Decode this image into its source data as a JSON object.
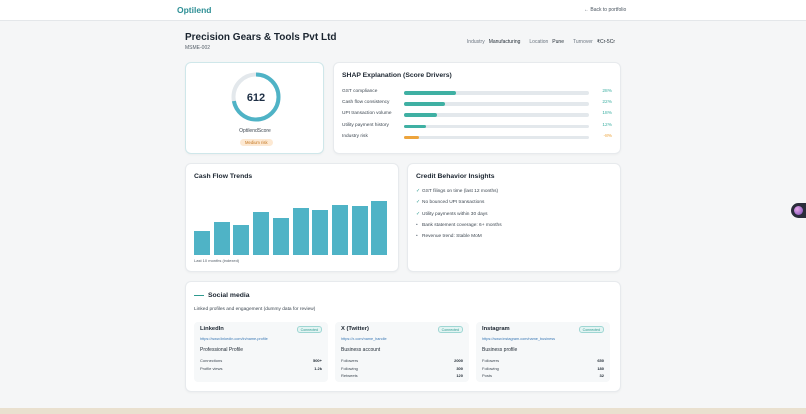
{
  "header": {
    "brand": "Optilend",
    "back_link": "← Back to portfolio"
  },
  "company": {
    "name": "Precision Gears & Tools Pvt Ltd",
    "id": "MSME-002",
    "meta": [
      {
        "label": "Industry",
        "value": "Manufacturing"
      },
      {
        "label": "Location",
        "value": "Pune"
      },
      {
        "label": "Turnover",
        "value": "₹Cr-5Cr"
      }
    ]
  },
  "score": {
    "value": "612",
    "fraction": 0.72,
    "label": "OptilendScore",
    "risk": "Medium risk",
    "ring_color": "#4fb3c6",
    "inner_color": "#1e2f45"
  },
  "shap": {
    "title": "SHAP Explanation (Score Drivers)",
    "rows": [
      {
        "name": "GST compliance",
        "value": "28%",
        "fraction": 0.28,
        "color": "#3fb0a3"
      },
      {
        "name": "Cash flow consistency",
        "value": "22%",
        "fraction": 0.22,
        "color": "#3fb0a3"
      },
      {
        "name": "UPI transaction volume",
        "value": "18%",
        "fraction": 0.18,
        "color": "#3fb0a3"
      },
      {
        "name": "Utility payment history",
        "value": "12%",
        "fraction": 0.12,
        "color": "#3fb0a3"
      },
      {
        "name": "Industry risk",
        "value": "-8%",
        "fraction": 0.08,
        "color": "#eda43c"
      }
    ]
  },
  "cashflow": {
    "title": "Cash Flow Trends",
    "caption": "Last 10 months (indexed)"
  },
  "chart_data": {
    "type": "bar",
    "title": "Cash Flow Trends",
    "values": [
      38,
      52,
      48,
      68,
      58,
      74,
      72,
      80,
      78,
      85
    ],
    "ylim": [
      0,
      100
    ],
    "color": "#4fb3c6"
  },
  "insights": {
    "title": "Credit Behavior Insights",
    "items": [
      {
        "mark": "✓",
        "text": "GST filings on time (last 12 months)"
      },
      {
        "mark": "✓",
        "text": "No bounced UPI transactions"
      },
      {
        "mark": "✓",
        "text": "Utility payments within 30 days"
      },
      {
        "mark": "•",
        "text": "Bank statement coverage: 6+ months"
      },
      {
        "mark": "•",
        "text": "Revenue trend: Stable MoM"
      }
    ]
  },
  "social": {
    "title": "Social media",
    "subtitle": "Linked profiles and engagement (dummy data for review)",
    "profiles": [
      {
        "name": "LinkedIn",
        "status": "Connected",
        "url": "https://www.linkedin.com/in/name-profile",
        "type": "Professional Profile",
        "stats": [
          {
            "label": "Connections",
            "value": "500+"
          },
          {
            "label": "Profile views",
            "value": "1.2k"
          }
        ]
      },
      {
        "name": "X (Twitter)",
        "status": "Connected",
        "url": "https://x.com/name_handle",
        "type": "Business account",
        "stats": [
          {
            "label": "Followers",
            "value": "2000"
          },
          {
            "label": "Following",
            "value": "300"
          },
          {
            "label": "Retweets",
            "value": "120"
          }
        ]
      },
      {
        "name": "Instagram",
        "status": "Connected",
        "url": "https://www.instagram.com/name_business",
        "type": "Business profile",
        "stats": [
          {
            "label": "Followers",
            "value": "650"
          },
          {
            "label": "Following",
            "value": "180"
          },
          {
            "label": "Posts",
            "value": "32"
          }
        ]
      }
    ]
  }
}
